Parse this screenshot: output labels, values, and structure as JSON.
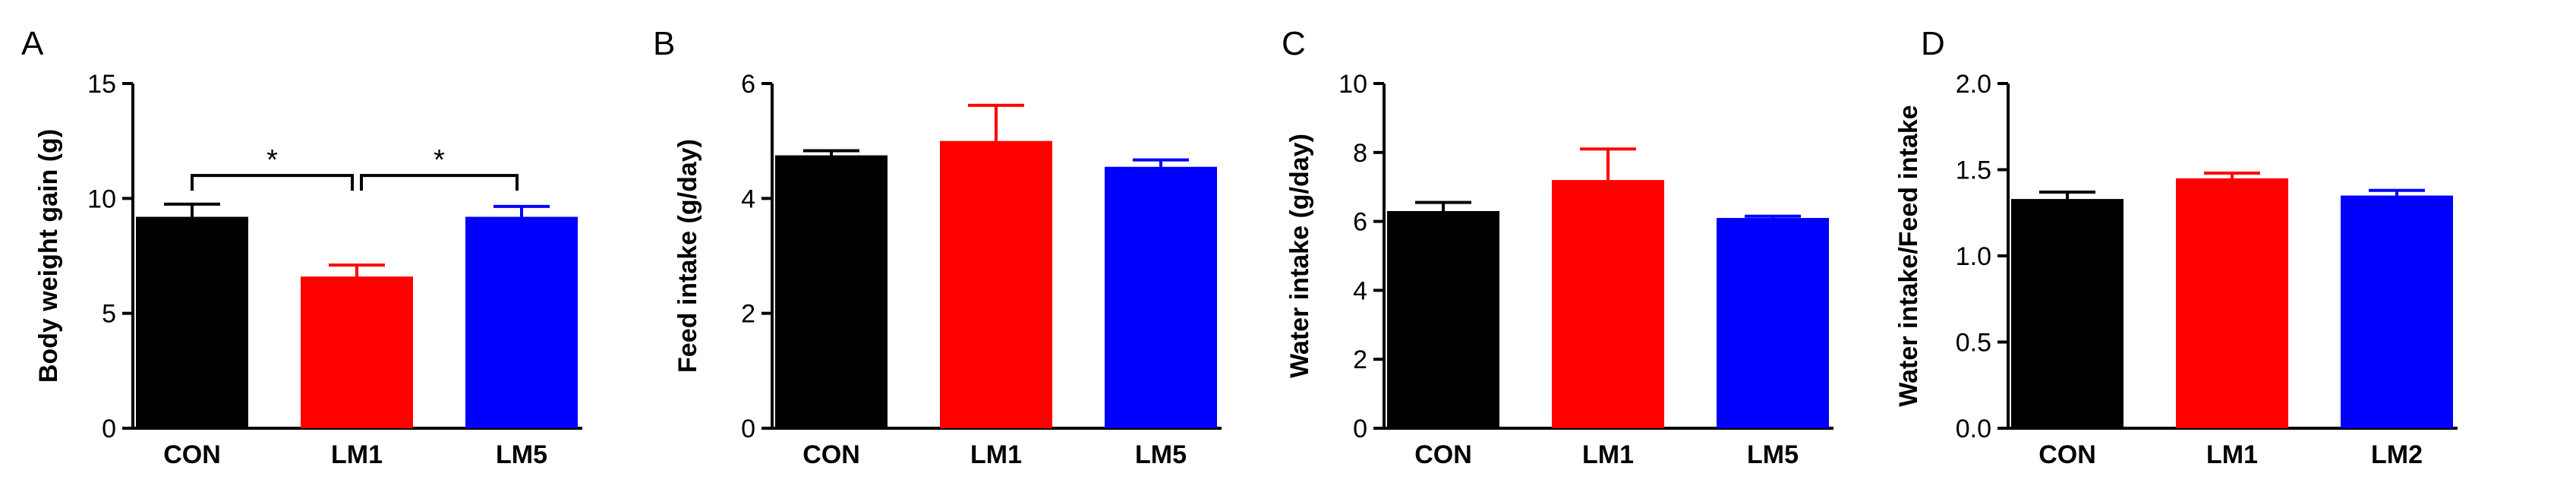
{
  "chart_data": [
    {
      "panel": "A",
      "type": "bar",
      "ylabel": "Body weight gain (g)",
      "ylim": [
        0,
        15
      ],
      "yticks": [
        "0",
        "5",
        "10",
        "15"
      ],
      "categories": [
        "CON",
        "LM1",
        "LM5"
      ],
      "values": [
        9.2,
        6.6,
        9.2
      ],
      "errors": [
        0.55,
        0.5,
        0.45
      ],
      "colors": [
        "#000000",
        "#ff0000",
        "#0000ff"
      ],
      "significance": [
        {
          "from": 0,
          "to": 1,
          "label": "*",
          "y": 11.0
        },
        {
          "from": 1,
          "to": 2,
          "label": "*",
          "y": 11.0
        }
      ]
    },
    {
      "panel": "B",
      "type": "bar",
      "ylabel": "Feed intake (g/day)",
      "ylim": [
        0,
        6
      ],
      "yticks": [
        "0",
        "2",
        "4",
        "6"
      ],
      "categories": [
        "CON",
        "LM1",
        "LM5"
      ],
      "values": [
        4.75,
        5.0,
        4.55
      ],
      "errors": [
        0.08,
        0.62,
        0.12
      ],
      "colors": [
        "#000000",
        "#ff0000",
        "#0000ff"
      ],
      "significance": []
    },
    {
      "panel": "C",
      "type": "bar",
      "ylabel": "Water intake (g/day)",
      "ylim": [
        0,
        10
      ],
      "yticks": [
        "0",
        "2",
        "4",
        "6",
        "8",
        "10"
      ],
      "categories": [
        "CON",
        "LM1",
        "LM5"
      ],
      "values": [
        6.3,
        7.2,
        6.1
      ],
      "errors": [
        0.25,
        0.9,
        0.05
      ],
      "colors": [
        "#000000",
        "#ff0000",
        "#0000ff"
      ],
      "significance": []
    },
    {
      "panel": "D",
      "type": "bar",
      "ylabel": "Water intake/Feed intake",
      "ylim": [
        0,
        2
      ],
      "yticks": [
        "0.0",
        "0.5",
        "1.0",
        "1.5",
        "2.0"
      ],
      "categories": [
        "CON",
        "LM1",
        "LM2"
      ],
      "values": [
        1.33,
        1.45,
        1.35
      ],
      "errors": [
        0.04,
        0.03,
        0.03
      ],
      "colors": [
        "#000000",
        "#ff0000",
        "#0000ff"
      ],
      "significance": []
    }
  ]
}
